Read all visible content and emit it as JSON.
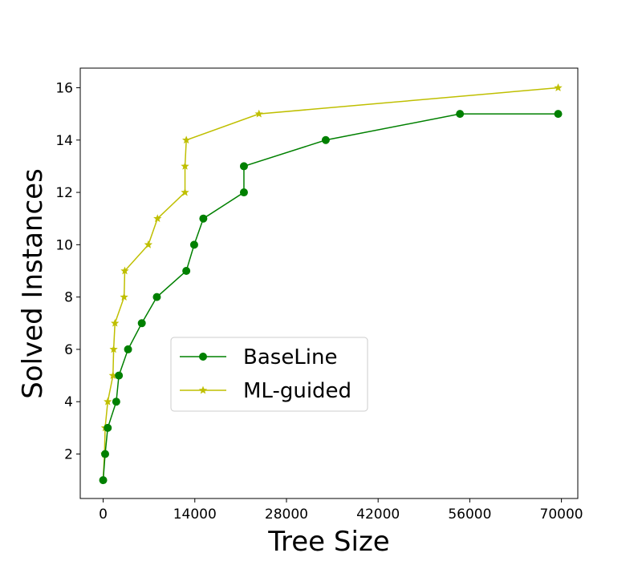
{
  "chart_data": {
    "type": "line",
    "title": "",
    "xlabel": "Tree Size",
    "ylabel": "Solved Instances",
    "xlim": [
      -3500,
      72500
    ],
    "ylim": [
      0.3,
      16.75
    ],
    "xticks": [
      0,
      14000,
      28000,
      42000,
      56000,
      70000
    ],
    "xtick_labels": [
      "0",
      "14000",
      "28000",
      "42000",
      "56000",
      "70000"
    ],
    "yticks": [
      2,
      4,
      6,
      8,
      10,
      12,
      14,
      16
    ],
    "ytick_labels": [
      "2",
      "4",
      "6",
      "8",
      "10",
      "12",
      "14",
      "16"
    ],
    "grid": false,
    "legend_position": "center",
    "series": [
      {
        "name": "BaseLine",
        "color": "#008000",
        "marker": "circle",
        "points": [
          {
            "x": 0,
            "y": 1
          },
          {
            "x": 300,
            "y": 2
          },
          {
            "x": 700,
            "y": 3
          },
          {
            "x": 2000,
            "y": 4
          },
          {
            "x": 2400,
            "y": 5
          },
          {
            "x": 3800,
            "y": 6
          },
          {
            "x": 5900,
            "y": 7
          },
          {
            "x": 8200,
            "y": 8
          },
          {
            "x": 12700,
            "y": 9
          },
          {
            "x": 13900,
            "y": 10
          },
          {
            "x": 15300,
            "y": 11
          },
          {
            "x": 21500,
            "y": 12
          },
          {
            "x": 21500,
            "y": 13
          },
          {
            "x": 34000,
            "y": 14
          },
          {
            "x": 54500,
            "y": 15
          },
          {
            "x": 69500,
            "y": 15
          }
        ]
      },
      {
        "name": "ML-guided",
        "color": "#bfbf00",
        "marker": "star",
        "points": [
          {
            "x": 0,
            "y": 1
          },
          {
            "x": 200,
            "y": 2
          },
          {
            "x": 300,
            "y": 3
          },
          {
            "x": 700,
            "y": 4
          },
          {
            "x": 1500,
            "y": 5
          },
          {
            "x": 1600,
            "y": 6
          },
          {
            "x": 1800,
            "y": 7
          },
          {
            "x": 3200,
            "y": 8
          },
          {
            "x": 3300,
            "y": 9
          },
          {
            "x": 6900,
            "y": 10
          },
          {
            "x": 8300,
            "y": 11
          },
          {
            "x": 12500,
            "y": 12
          },
          {
            "x": 12500,
            "y": 13
          },
          {
            "x": 12700,
            "y": 14
          },
          {
            "x": 23800,
            "y": 15
          },
          {
            "x": 69500,
            "y": 16
          }
        ]
      }
    ]
  }
}
